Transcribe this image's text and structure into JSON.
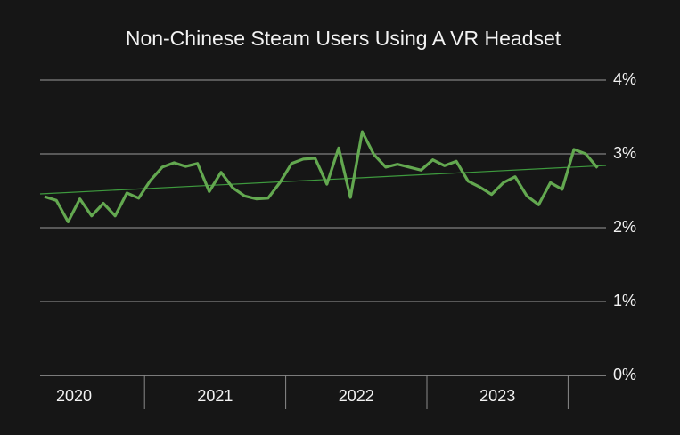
{
  "chart_data": {
    "type": "line",
    "title": "Non-Chinese Steam Users Using A VR Headset",
    "categories": [
      null,
      null,
      null,
      null,
      null,
      null,
      null,
      null,
      null,
      null,
      null,
      null,
      null,
      null,
      null,
      null,
      null,
      null,
      null,
      null,
      null,
      null,
      null,
      null,
      null,
      null,
      null,
      null,
      null,
      null,
      null,
      null,
      null,
      null,
      null,
      null,
      null,
      null,
      null,
      null,
      null,
      null,
      null,
      null,
      null,
      null,
      null,
      null
    ],
    "x_groups": [
      "2020",
      "2021",
      "2022",
      "2023"
    ],
    "series": [
      {
        "color": "#63a850",
        "values": [
          2.42,
          2.37,
          2.08,
          2.39,
          2.16,
          2.33,
          2.16,
          2.47,
          2.4,
          2.64,
          2.82,
          2.88,
          2.83,
          2.87,
          2.49,
          2.75,
          2.54,
          2.43,
          2.39,
          2.4,
          2.61,
          2.87,
          2.93,
          2.94,
          2.59,
          3.08,
          2.41,
          3.3,
          2.99,
          2.82,
          2.86,
          2.82,
          2.78,
          2.92,
          2.84,
          2.9,
          2.63,
          2.55,
          2.45,
          2.61,
          2.69,
          2.43,
          2.31,
          2.61,
          2.52,
          3.06,
          3.0,
          2.81
        ]
      }
    ],
    "trendline": true,
    "trend_color": "#3e9a3e",
    "ylim": [
      0,
      4
    ],
    "yticks": [
      {
        "value": 0,
        "label": "0%"
      },
      {
        "value": 1,
        "label": "1%"
      },
      {
        "value": 2,
        "label": "2%"
      },
      {
        "value": 3,
        "label": "3%"
      },
      {
        "value": 4,
        "label": "4%"
      }
    ],
    "grid": true
  }
}
